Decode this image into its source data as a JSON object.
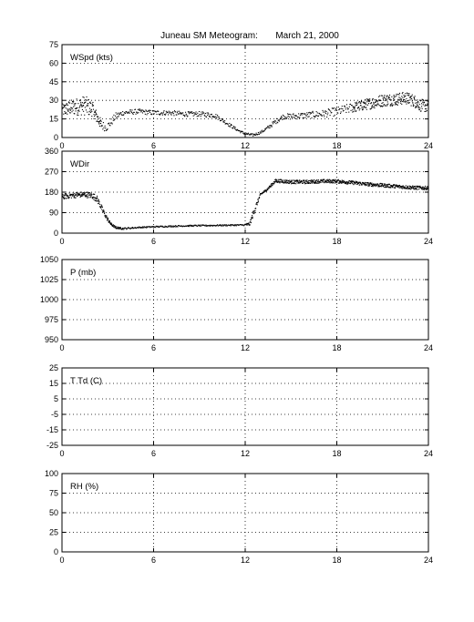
{
  "title": "Juneau SM Meteogram:       March 21, 2000",
  "chart_data": [
    {
      "type": "scatter",
      "label": "WSpd (kts)",
      "xlim": [
        0,
        24
      ],
      "ylim": [
        0,
        75
      ],
      "xticks": [
        0,
        6,
        12,
        18,
        24
      ],
      "yticks": [
        0,
        15,
        30,
        45,
        60,
        75
      ],
      "grid": true,
      "series": [
        {
          "x": [
            0,
            0.5,
            1,
            1.5,
            2,
            2.3,
            2.6,
            2.9,
            3.2,
            3.5,
            4,
            5,
            6,
            7,
            8,
            9,
            10,
            10.5,
            11,
            11.5,
            12,
            12.5,
            13,
            13.5,
            14,
            14.5,
            15,
            16,
            17,
            18,
            19,
            20,
            21,
            22,
            22.5,
            23,
            23.5,
            24
          ],
          "y": [
            22,
            24,
            25,
            26,
            23,
            16,
            10,
            8,
            12,
            17,
            20,
            21,
            20,
            20,
            19,
            19,
            18,
            14,
            10,
            6,
            3,
            2,
            4,
            8,
            13,
            17,
            17,
            18,
            19,
            21,
            24,
            27,
            30,
            31,
            32,
            30,
            26,
            25
          ],
          "spread": [
            5,
            6,
            7,
            8,
            6,
            5,
            4,
            3,
            3,
            3,
            2,
            2,
            2,
            2,
            2,
            2,
            2,
            1.5,
            1.5,
            1,
            1,
            1,
            1,
            1.5,
            2,
            2,
            2.5,
            2.5,
            3,
            3.5,
            4,
            4.5,
            5,
            5,
            5,
            5,
            5,
            5
          ]
        }
      ]
    },
    {
      "type": "scatter",
      "label": "WDir",
      "xlim": [
        0,
        24
      ],
      "ylim": [
        0,
        360
      ],
      "xticks": [
        0,
        6,
        12,
        18,
        24
      ],
      "yticks": [
        0,
        90,
        180,
        270,
        360
      ],
      "grid": true,
      "series": [
        {
          "x": [
            0,
            0.5,
            1,
            1.5,
            2,
            2.3,
            2.6,
            2.9,
            3.2,
            3.5,
            4,
            5,
            6,
            7,
            8,
            9,
            10,
            11,
            11.9,
            12.3,
            12.6,
            13,
            13.4,
            14,
            15,
            16,
            17,
            18,
            19,
            20,
            21,
            22,
            23,
            24
          ],
          "y": [
            160,
            165,
            168,
            170,
            165,
            150,
            110,
            70,
            40,
            25,
            20,
            25,
            28,
            30,
            32,
            33,
            34,
            35,
            36,
            40,
            100,
            170,
            190,
            230,
            225,
            225,
            228,
            228,
            222,
            215,
            210,
            205,
            200,
            198
          ],
          "spread": [
            12,
            12,
            12,
            12,
            14,
            14,
            12,
            10,
            6,
            5,
            4,
            3,
            3,
            3,
            3,
            3,
            3,
            3,
            3,
            8,
            15,
            5,
            5,
            8,
            8,
            8,
            8,
            8,
            8,
            8,
            8,
            8,
            8,
            8
          ]
        }
      ]
    },
    {
      "type": "scatter",
      "label": "P (mb)",
      "xlim": [
        0,
        24
      ],
      "ylim": [
        950,
        1050
      ],
      "xticks": [
        0,
        6,
        12,
        18,
        24
      ],
      "yticks": [
        950,
        975,
        1000,
        1025,
        1050
      ],
      "grid": true,
      "series": []
    },
    {
      "type": "scatter",
      "label": "T Td (C)",
      "xlim": [
        0,
        24
      ],
      "ylim": [
        -25,
        25
      ],
      "xticks": [
        0,
        6,
        12,
        18,
        24
      ],
      "yticks": [
        -25,
        -15,
        -5,
        5,
        15,
        25
      ],
      "grid": true,
      "series": []
    },
    {
      "type": "scatter",
      "label": "RH (%)",
      "xlim": [
        0,
        24
      ],
      "ylim": [
        0,
        100
      ],
      "xticks": [
        0,
        6,
        12,
        18,
        24
      ],
      "yticks": [
        0,
        25,
        50,
        75,
        100
      ],
      "grid": true,
      "series": []
    }
  ]
}
